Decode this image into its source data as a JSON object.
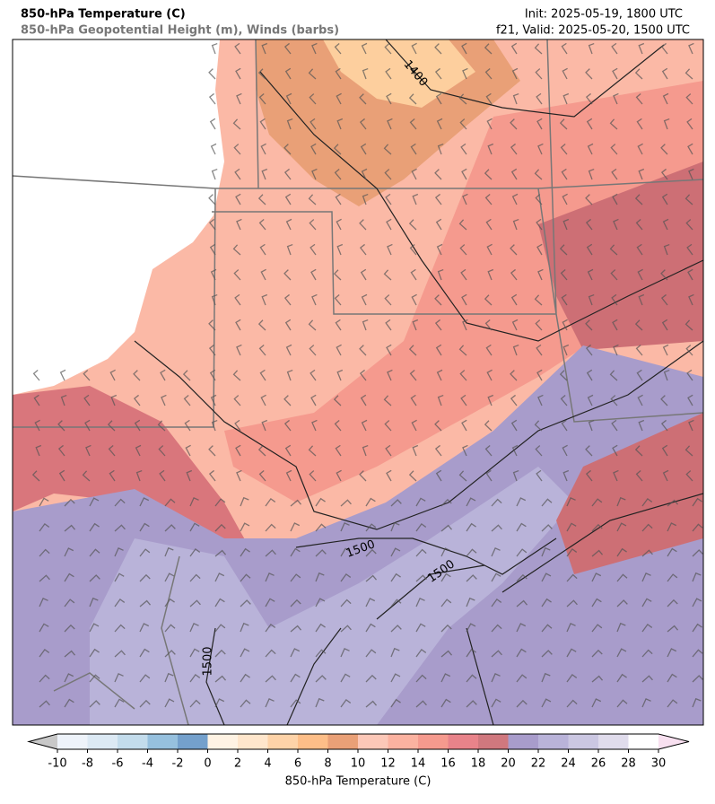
{
  "header": {
    "title": "850-hPa Temperature (C)",
    "subtitle": "850-hPa Geopotential Height (m), Winds (barbs)",
    "init": "Init: 2025-05-19, 1800 UTC",
    "valid": "f21, Valid: 2025-05-20, 1500 UTC"
  },
  "contour_labels": [
    1400,
    1500,
    1500,
    1500
  ],
  "colorbar": {
    "label": "850-hPa Temperature (C)",
    "ticks": [
      -10,
      -8,
      -6,
      -4,
      -2,
      0,
      2,
      4,
      6,
      8,
      10,
      12,
      14,
      16,
      18,
      20,
      22,
      24,
      26,
      28,
      30
    ],
    "colors": [
      "#eef3fa",
      "#dce9f4",
      "#c3dcec",
      "#96c0de",
      "#74a0cc",
      "#fff3e4",
      "#ffe6cc",
      "#fed3a8",
      "#fdbe88",
      "#e9a077",
      "#fcc8b8",
      "#fbb2a0",
      "#f59a8e",
      "#e8838a",
      "#d0787e",
      "#a89ccb",
      "#b9b3d9",
      "#cbc7e2",
      "#e0dcec",
      "#ffffff"
    ],
    "under_color": "#c8c8c8",
    "over_color": "#f8e0f0"
  }
}
